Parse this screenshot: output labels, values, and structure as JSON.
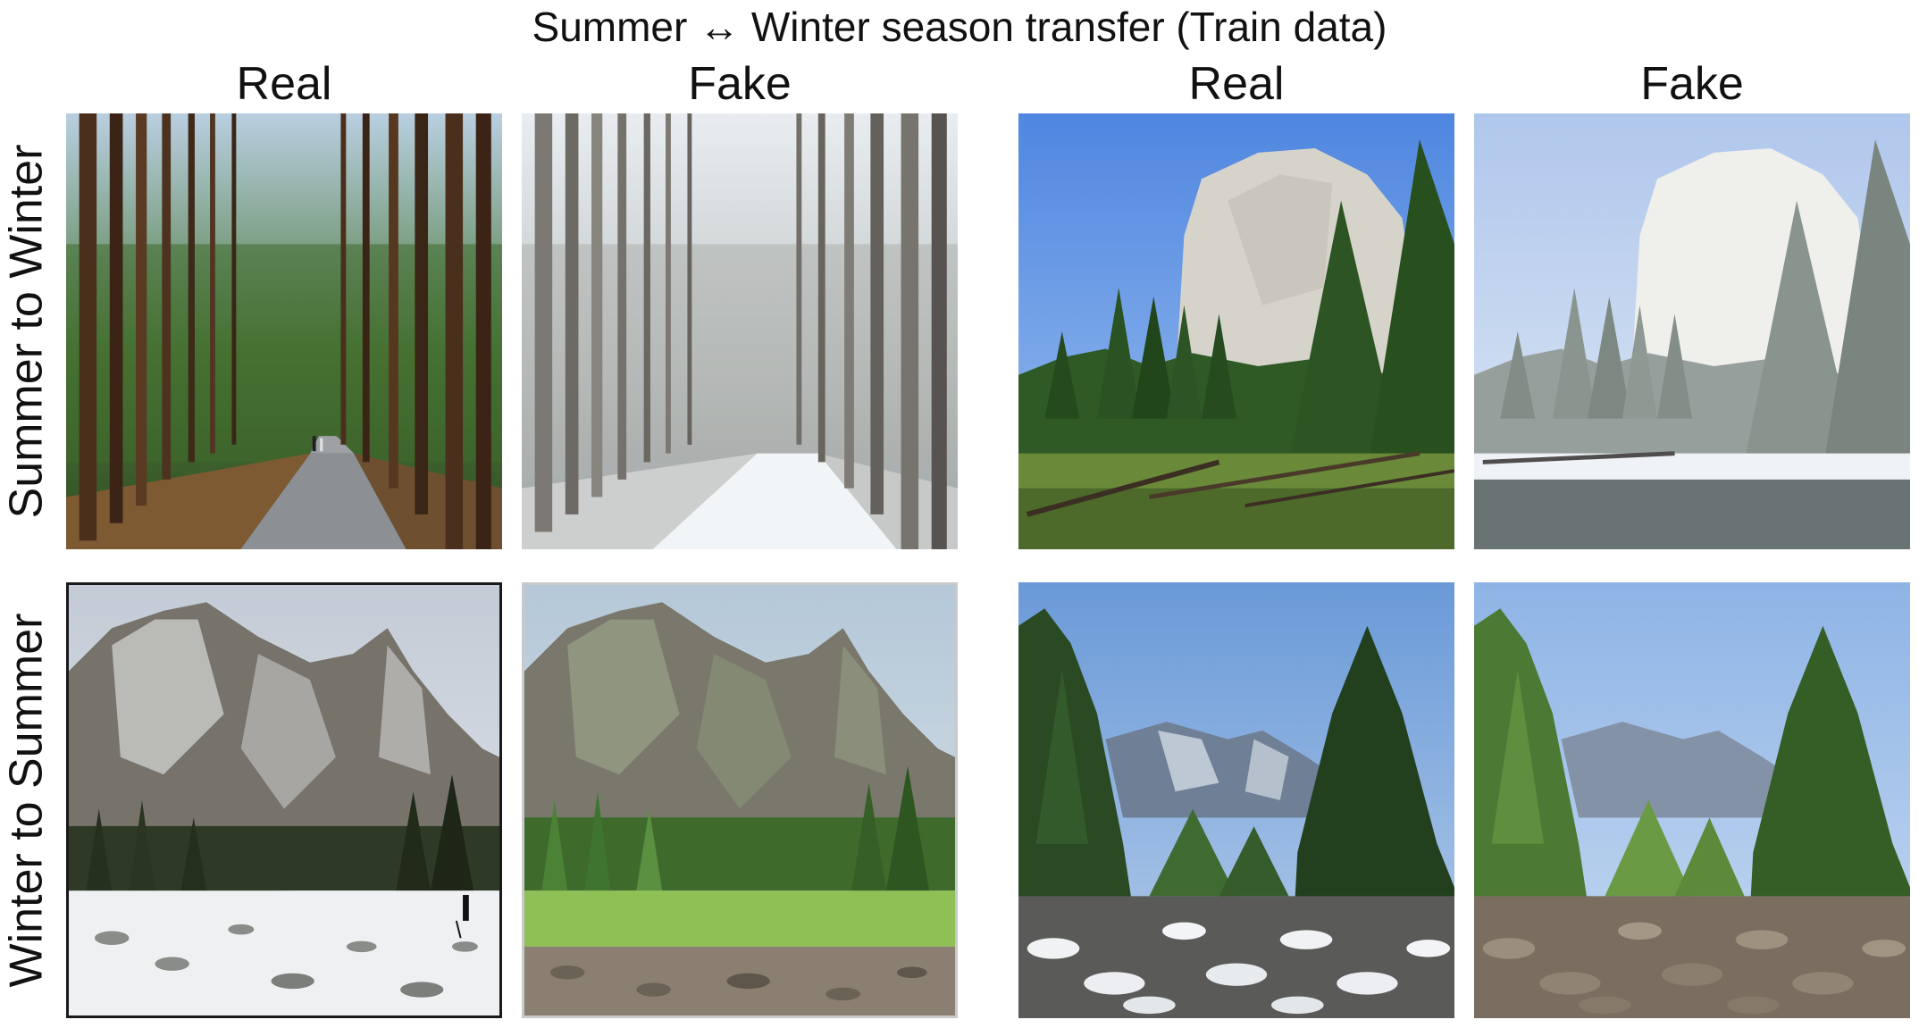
{
  "figure": {
    "title": "Summer ↔ Winter season transfer (Train data)",
    "column_labels": [
      "Real",
      "Fake",
      "Real",
      "Fake"
    ],
    "row_labels": [
      "Summer to Winter",
      "Winter to Summer"
    ]
  },
  "panels": [
    {
      "row": "Summer to Winter",
      "column": "Real",
      "scene": "summer-forest-road",
      "icon": "forest-road-photo"
    },
    {
      "row": "Summer to Winter",
      "column": "Fake",
      "scene": "snowy-forest-road",
      "icon": "forest-road-photo"
    },
    {
      "row": "Summer to Winter",
      "column": "Real",
      "scene": "summer-granite-cliff-meadow",
      "icon": "cliff-meadow-photo"
    },
    {
      "row": "Summer to Winter",
      "column": "Fake",
      "scene": "snowy-granite-cliff-meadow",
      "icon": "cliff-meadow-photo"
    },
    {
      "row": "Winter to Summer",
      "column": "Real",
      "scene": "snowy-mountain-meadow",
      "icon": "mountain-meadow-photo"
    },
    {
      "row": "Winter to Summer",
      "column": "Fake",
      "scene": "green-mountain-meadow",
      "icon": "mountain-meadow-photo"
    },
    {
      "row": "Winter to Summer",
      "column": "Real",
      "scene": "snowy-valley-rocks",
      "icon": "valley-river-photo"
    },
    {
      "row": "Winter to Summer",
      "column": "Fake",
      "scene": "summer-valley-rocks",
      "icon": "valley-river-photo"
    }
  ],
  "colors": {
    "summer_sky": "#5f93e6",
    "winter_sky": "#d8e2ee",
    "foliage": "#3f6e32",
    "snow": "#f3f5f8",
    "rock": "#a8a49c"
  }
}
